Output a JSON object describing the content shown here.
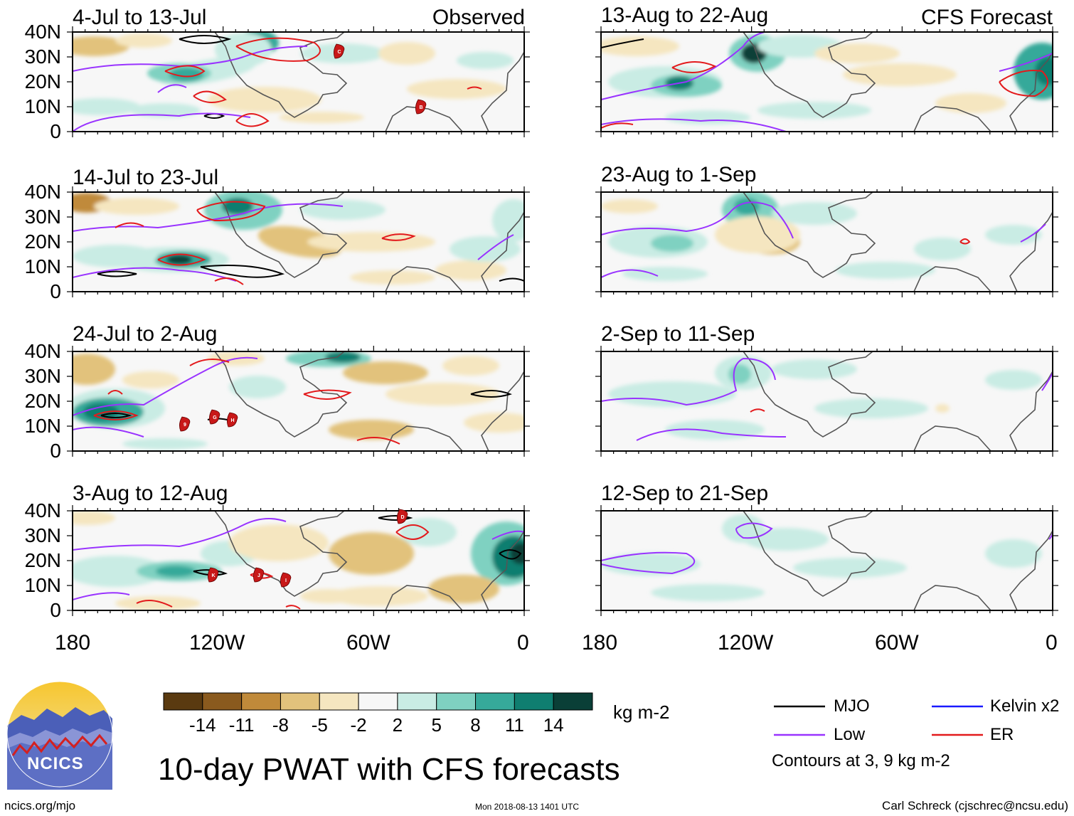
{
  "title": "10-day PWAT with CFS forecasts",
  "colorbar": {
    "unit": "kg m-2",
    "tick_labels": [
      "-14",
      "-11",
      "-8",
      "-5",
      "-2",
      "2",
      "5",
      "8",
      "11",
      "14"
    ],
    "colors": [
      "#5a3a10",
      "#8a5a1e",
      "#c08a3a",
      "#e2c27c",
      "#f5e6c0",
      "#f7f7f7",
      "#c9ece4",
      "#7fd1c1",
      "#36a99a",
      "#0f7e70",
      "#0a3f37"
    ]
  },
  "legend": {
    "items": [
      {
        "label": "MJO",
        "color": "#000000"
      },
      {
        "label": "Kelvin x2",
        "color": "#1a1aff"
      },
      {
        "label": "Low",
        "color": "#9933ff"
      },
      {
        "label": "ER",
        "color": "#e31a1c"
      }
    ],
    "note": "Contours at 3, 9 kg m-2"
  },
  "panels": {
    "observed_label": "Observed",
    "forecast_label": "CFS Forecast",
    "left": [
      "4-Jul to 13-Jul",
      "14-Jul to 23-Jul",
      "24-Jul to 2-Aug",
      "3-Aug to 12-Aug"
    ],
    "right": [
      "13-Aug to 22-Aug",
      "23-Aug to 1-Sep",
      "2-Sep to 11-Sep",
      "12-Sep to 21-Sep"
    ]
  },
  "axes": {
    "y_labels": [
      "40N",
      "30N",
      "20N",
      "10N",
      "0"
    ],
    "x_labels": [
      "180",
      "120W",
      "60W",
      "0"
    ]
  },
  "storm_markers": [
    "C",
    "B",
    "9",
    "G",
    "H",
    "D",
    "K",
    "J",
    "I"
  ],
  "logo": {
    "text": "NCICS"
  },
  "footer": {
    "url": "ncics.org/mjo",
    "timestamp": "Mon 2018-08-13 1401 UTC",
    "credit": "Carl Schreck (cjschrec@ncsu.edu)"
  }
}
